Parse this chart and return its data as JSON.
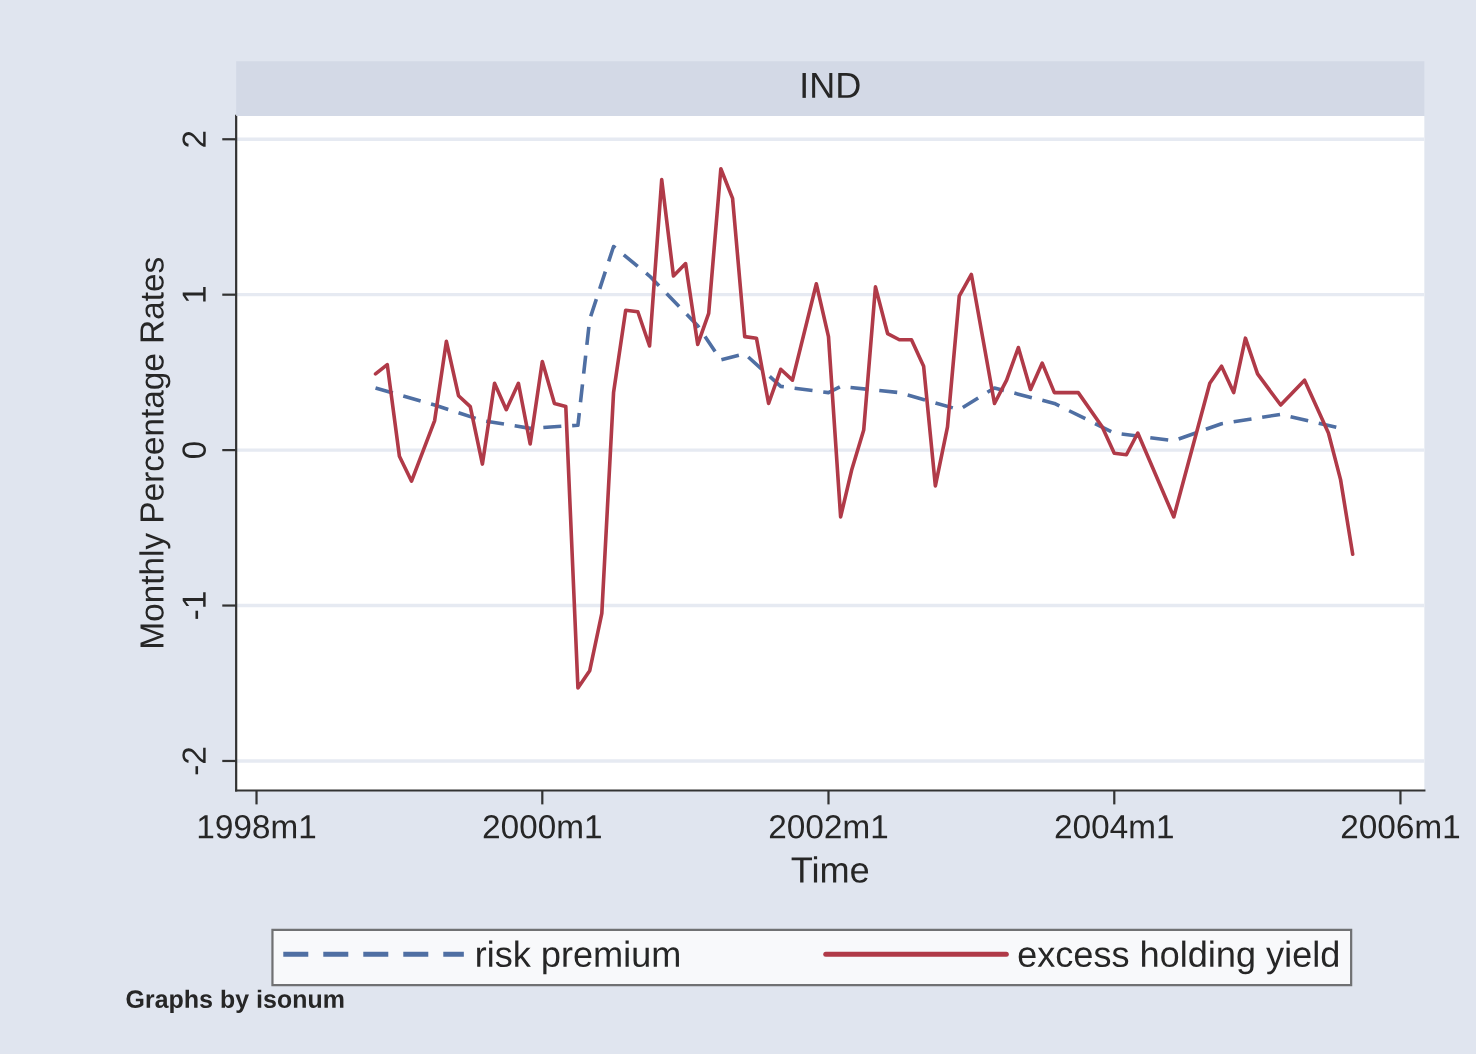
{
  "chart_data": {
    "type": "line",
    "title": "IND",
    "xlabel": "Time",
    "ylabel": "Monthly Percentage Rates",
    "xlim": [
      "1997-11-10",
      "2006-03-03"
    ],
    "ylim": [
      -2.19,
      2.15
    ],
    "xticks": [
      {
        "value": "1998-01",
        "label": "1998m1"
      },
      {
        "value": "2000-01",
        "label": "2000m1"
      },
      {
        "value": "2002-01",
        "label": "2002m1"
      },
      {
        "value": "2004-01",
        "label": "2004m1"
      },
      {
        "value": "2006-01",
        "label": "2006m1"
      }
    ],
    "yticks": [
      -2,
      -1,
      0,
      1,
      2
    ],
    "grid": "y",
    "legend": "bottom",
    "marker": "none",
    "annotations": [
      "Graphs by isonum"
    ],
    "series": [
      {
        "name": "risk premium",
        "color": "#4f6fa3",
        "line_style": "dashed",
        "x": [
          "1998-11",
          "1999-04",
          "1999-08",
          "1999-12",
          "2000-04",
          "2000-05",
          "2000-07",
          "2000-10",
          "2001-02",
          "2001-04",
          "2001-06",
          "2001-09",
          "2002-01",
          "2002-02",
          "2002-07",
          "2002-12",
          "2003-03",
          "2003-08",
          "2004-01",
          "2004-06",
          "2004-10",
          "2005-03",
          "2005-08"
        ],
        "values": [
          0.4,
          0.29,
          0.19,
          0.14,
          0.16,
          0.84,
          1.31,
          1.12,
          0.8,
          0.58,
          0.62,
          0.41,
          0.37,
          0.41,
          0.37,
          0.26,
          0.4,
          0.3,
          0.11,
          0.06,
          0.17,
          0.23,
          0.14
        ]
      },
      {
        "name": "excess holding yield",
        "color": "#b03a48",
        "line_style": "solid",
        "x": [
          "1998-11",
          "1998-12",
          "1999-01",
          "1999-02",
          "1999-04",
          "1999-05",
          "1999-06",
          "1999-07",
          "1999-08",
          "1999-09",
          "1999-10",
          "1999-11",
          "1999-12",
          "2000-01",
          "2000-02",
          "2000-03",
          "2000-04",
          "2000-05",
          "2000-06",
          "2000-07",
          "2000-08",
          "2000-09",
          "2000-10",
          "2000-11",
          "2000-12",
          "2001-01",
          "2001-02",
          "2001-03",
          "2001-04",
          "2001-05",
          "2001-06",
          "2001-07",
          "2001-08",
          "2001-09",
          "2001-10",
          "2001-12",
          "2002-01",
          "2002-02",
          "2002-03",
          "2002-04",
          "2002-05",
          "2002-06",
          "2002-07",
          "2002-08",
          "2002-09",
          "2002-10",
          "2002-11",
          "2002-12",
          "2003-01",
          "2003-03",
          "2003-04",
          "2003-05",
          "2003-06",
          "2003-07",
          "2003-08",
          "2003-10",
          "2003-12",
          "2004-01",
          "2004-02",
          "2004-03",
          "2004-06",
          "2004-09",
          "2004-10",
          "2004-11",
          "2004-12",
          "2005-01",
          "2005-03",
          "2005-05",
          "2005-07",
          "2005-08",
          "2005-09"
        ],
        "values": [
          0.49,
          0.55,
          -0.04,
          -0.2,
          0.19,
          0.7,
          0.35,
          0.28,
          -0.09,
          0.43,
          0.26,
          0.43,
          0.04,
          0.57,
          0.3,
          0.28,
          -1.53,
          -1.42,
          -1.05,
          0.37,
          0.9,
          0.89,
          0.67,
          1.74,
          1.12,
          1.2,
          0.68,
          0.88,
          1.81,
          1.62,
          0.73,
          0.72,
          0.3,
          0.52,
          0.45,
          1.07,
          0.73,
          -0.43,
          -0.13,
          0.13,
          1.05,
          0.75,
          0.71,
          0.71,
          0.54,
          -0.23,
          0.15,
          0.99,
          1.13,
          0.3,
          0.45,
          0.66,
          0.39,
          0.56,
          0.37,
          0.37,
          0.15,
          -0.02,
          -0.03,
          0.11,
          -0.43,
          0.43,
          0.54,
          0.37,
          0.72,
          0.49,
          0.29,
          0.45,
          0.11,
          -0.19,
          -0.67
        ]
      }
    ]
  }
}
